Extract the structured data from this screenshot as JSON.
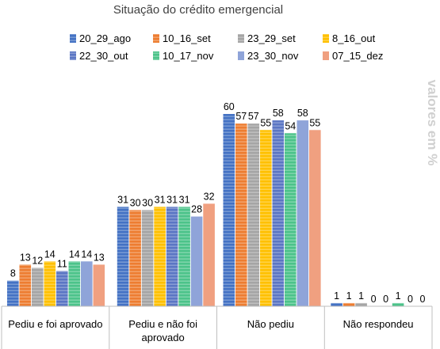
{
  "chart_data": {
    "type": "bar",
    "title": "Situação do crédito emergencial",
    "ylabel": "valores em %",
    "ylim": [
      0,
      70
    ],
    "grid": false,
    "legend_position": "top",
    "categories": [
      "Pediu e foi  aprovado",
      "Pediu e não foi aprovado",
      "Não pediu",
      "Não respondeu"
    ],
    "category_lines": [
      [
        "Pediu e foi  aprovado"
      ],
      [
        "Pediu e não foi",
        "aprovado"
      ],
      [
        "Não pediu"
      ],
      [
        "Não respondeu"
      ]
    ],
    "series": [
      {
        "name": "20_29_ago",
        "values": [
          8,
          31,
          60,
          1
        ],
        "color": "#4472c4",
        "striped": true
      },
      {
        "name": "10_16_set",
        "values": [
          13,
          30,
          57,
          1
        ],
        "color": "#ed7d31",
        "striped": true
      },
      {
        "name": "23_29_set",
        "values": [
          12,
          30,
          57,
          1
        ],
        "color": "#a5a5a5",
        "striped": true
      },
      {
        "name": "8_16_out",
        "values": [
          14,
          31,
          55,
          0
        ],
        "color": "#ffc000",
        "striped": true
      },
      {
        "name": "22_30_out",
        "values": [
          11,
          31,
          58,
          0
        ],
        "color": "#5b76c4",
        "striped": true
      },
      {
        "name": "10_17_nov",
        "values": [
          14,
          31,
          54,
          1
        ],
        "color": "#4cc38a",
        "striped": true
      },
      {
        "name": "23_30_nov",
        "values": [
          14,
          28,
          58,
          0
        ],
        "color": "#8fa4d9",
        "striped": false
      },
      {
        "name": "07_15_dez",
        "values": [
          13,
          32,
          55,
          0
        ],
        "color": "#f0a080",
        "striped": false
      }
    ]
  }
}
